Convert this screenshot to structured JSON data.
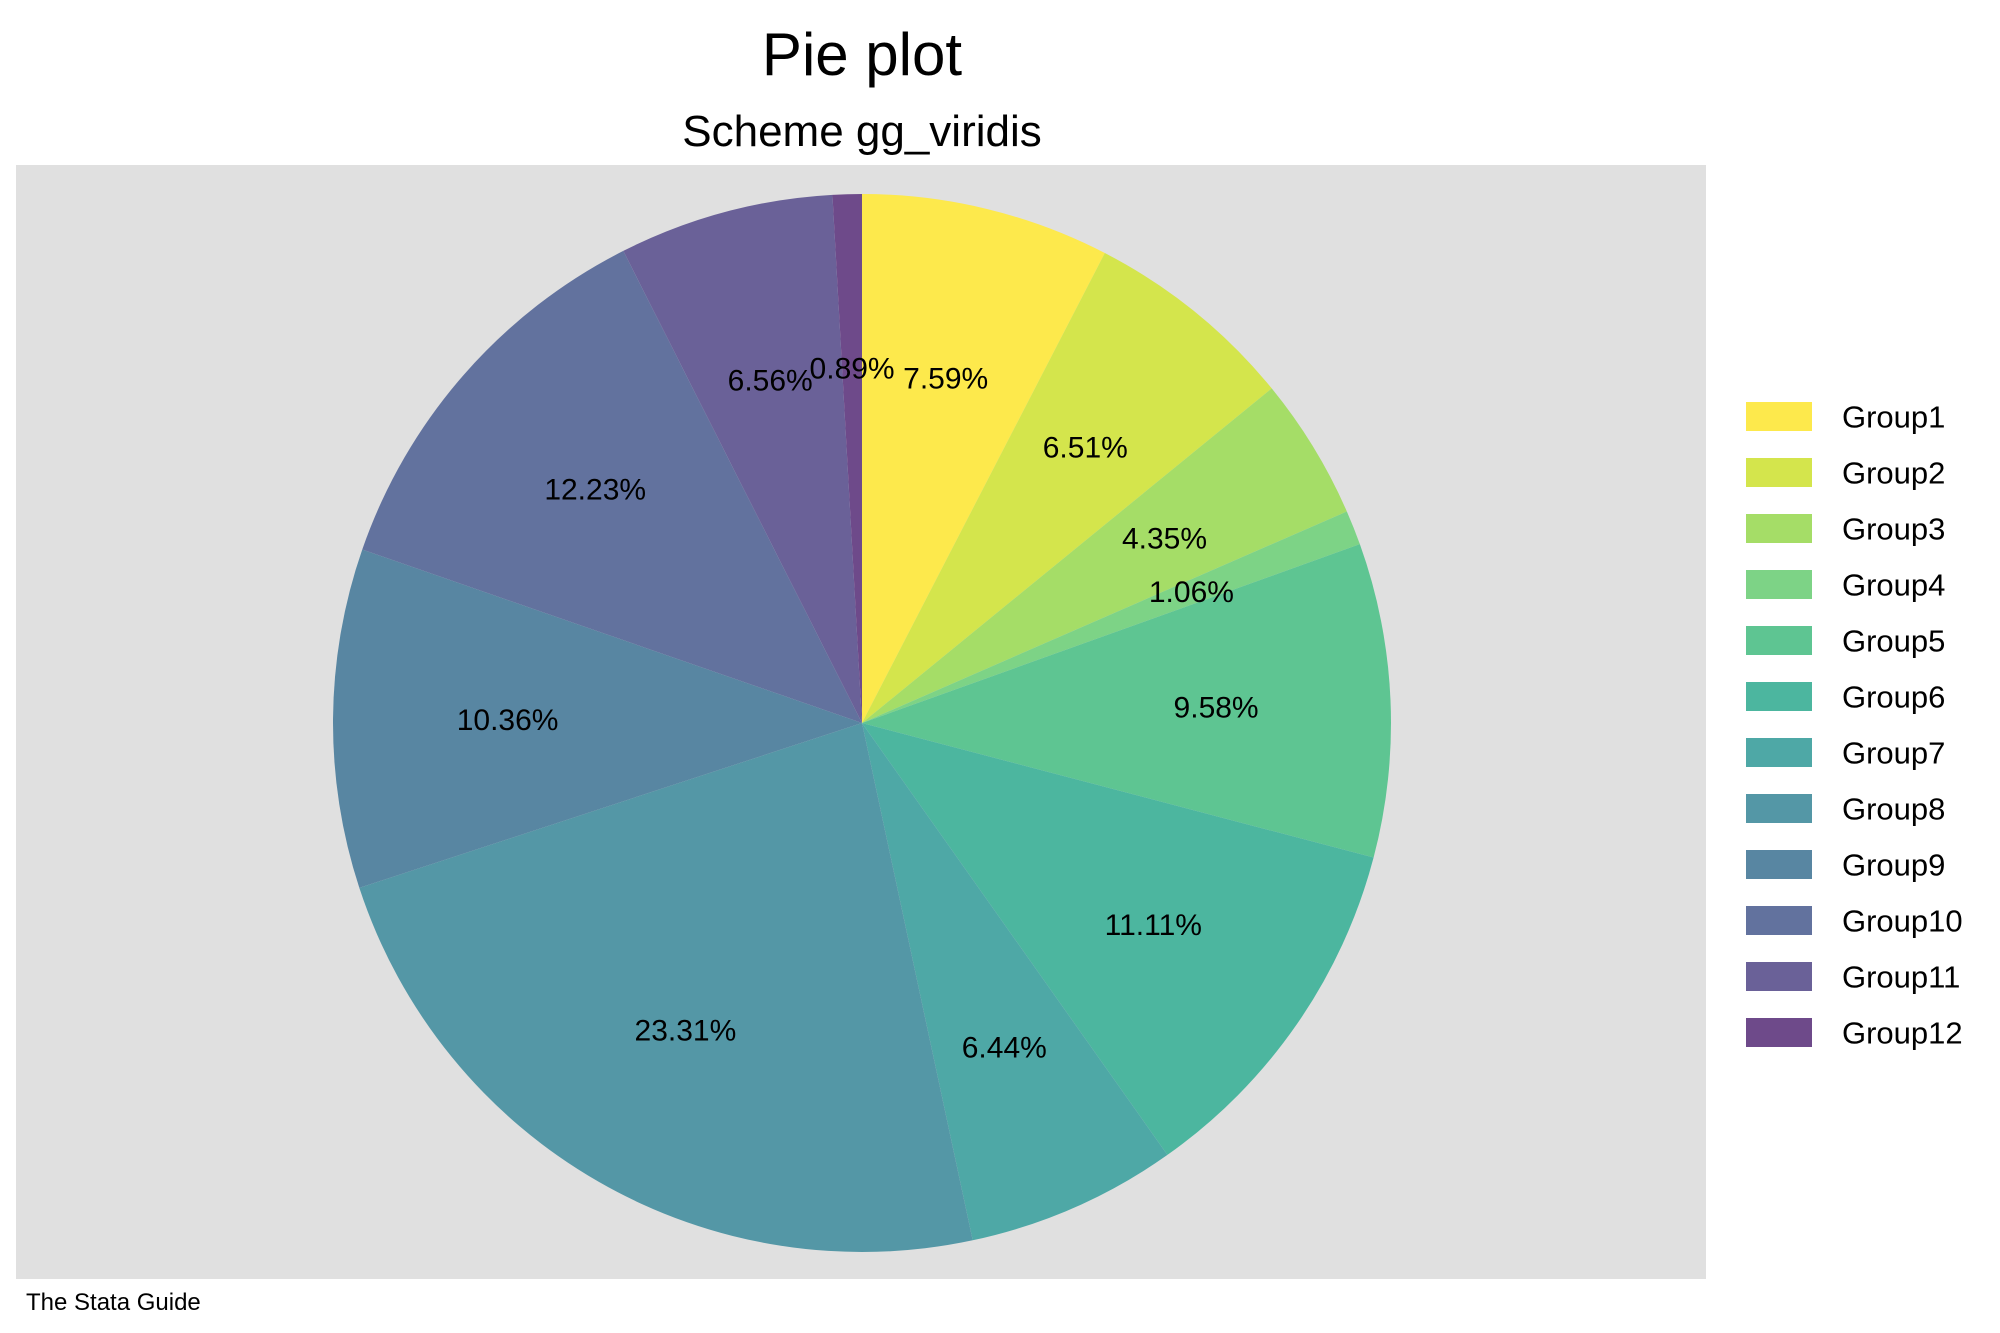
{
  "chart_data": {
    "type": "pie",
    "title": "Pie plot",
    "subtitle": "Scheme gg_viridis",
    "caption": "The Stata Guide",
    "legend_position": "right",
    "start_angle": "12 o'clock",
    "direction": "clockwise",
    "plot_background": "#e0e0e0",
    "slices": [
      {
        "name": "Group1",
        "value": 7.59,
        "label": "7.59%",
        "color": "#fde94c"
      },
      {
        "name": "Group2",
        "value": 6.51,
        "label": "6.51%",
        "color": "#d4e54c"
      },
      {
        "name": "Group3",
        "value": 4.35,
        "label": "4.35%",
        "color": "#a5dd67"
      },
      {
        "name": "Group4",
        "value": 1.06,
        "label": "1.06%",
        "color": "#7dd386"
      },
      {
        "name": "Group5",
        "value": 9.58,
        "label": "9.58%",
        "color": "#5ec592"
      },
      {
        "name": "Group6",
        "value": 11.11,
        "label": "11.11%",
        "color": "#4cb69f"
      },
      {
        "name": "Group7",
        "value": 6.44,
        "label": "6.44%",
        "color": "#4ea8a6"
      },
      {
        "name": "Group8",
        "value": 23.31,
        "label": "23.31%",
        "color": "#5497a6"
      },
      {
        "name": "Group9",
        "value": 10.36,
        "label": "10.36%",
        "color": "#5886a2"
      },
      {
        "name": "Group10",
        "value": 12.23,
        "label": "12.23%",
        "color": "#62729e"
      },
      {
        "name": "Group11",
        "value": 6.56,
        "label": "6.56%",
        "color": "#6a6198"
      },
      {
        "name": "Group12",
        "value": 0.89,
        "label": "0.89%",
        "color": "#6e4a8a"
      }
    ]
  }
}
